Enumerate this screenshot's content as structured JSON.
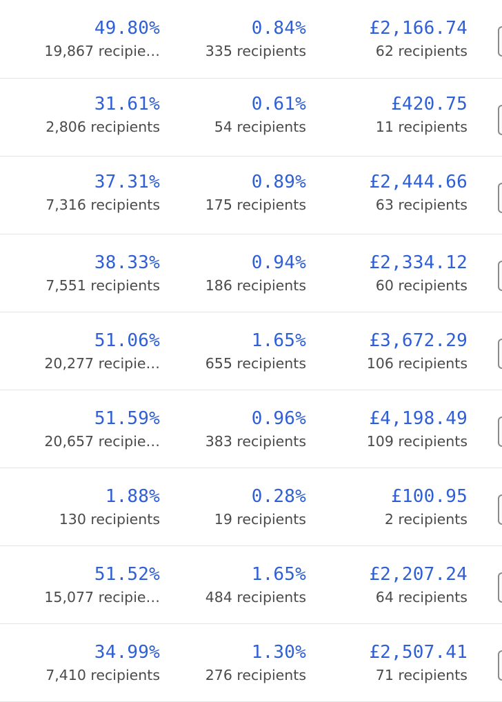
{
  "rows": [
    {
      "open_rate": "49.80%",
      "open_recipients": "19,867 recipie…",
      "click_rate": "0.84%",
      "click_recipients": "335 recipients",
      "revenue": "£2,166.74",
      "revenue_recipients": "62 recipients"
    },
    {
      "open_rate": "31.61%",
      "open_recipients": "2,806 recipients",
      "click_rate": "0.61%",
      "click_recipients": "54 recipients",
      "revenue": "£420.75",
      "revenue_recipients": "11 recipients"
    },
    {
      "open_rate": "37.31%",
      "open_recipients": "7,316 recipients",
      "click_rate": "0.89%",
      "click_recipients": "175 recipients",
      "revenue": "£2,444.66",
      "revenue_recipients": "63 recipients"
    },
    {
      "open_rate": "38.33%",
      "open_recipients": "7,551 recipients",
      "click_rate": "0.94%",
      "click_recipients": "186 recipients",
      "revenue": "£2,334.12",
      "revenue_recipients": "60 recipients"
    },
    {
      "open_rate": "51.06%",
      "open_recipients": "20,277 recipie…",
      "click_rate": "1.65%",
      "click_recipients": "655 recipients",
      "revenue": "£3,672.29",
      "revenue_recipients": "106 recipients"
    },
    {
      "open_rate": "51.59%",
      "open_recipients": "20,657 recipie…",
      "click_rate": "0.96%",
      "click_recipients": "383 recipients",
      "revenue": "£4,198.49",
      "revenue_recipients": "109 recipients"
    },
    {
      "open_rate": "1.88%",
      "open_recipients": "130 recipients",
      "click_rate": "0.28%",
      "click_recipients": "19 recipients",
      "revenue": "£100.95",
      "revenue_recipients": "2 recipients"
    },
    {
      "open_rate": "51.52%",
      "open_recipients": "15,077 recipie…",
      "click_rate": "1.65%",
      "click_recipients": "484 recipients",
      "revenue": "£2,207.24",
      "revenue_recipients": "64 recipients"
    },
    {
      "open_rate": "34.99%",
      "open_recipients": "7,410 recipients",
      "click_rate": "1.30%",
      "click_recipients": "276 recipients",
      "revenue": "£2,507.41",
      "revenue_recipients": "71 recipients"
    }
  ]
}
